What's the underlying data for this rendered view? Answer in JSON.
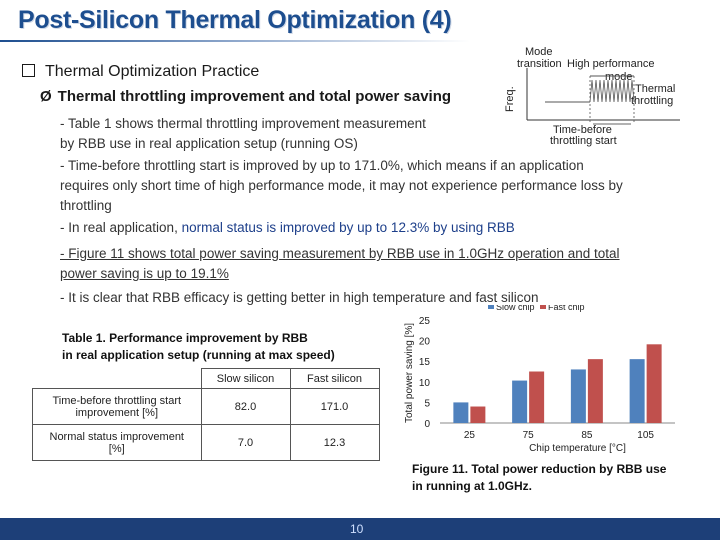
{
  "title": "Post-Silicon Thermal Optimization (4)",
  "bullet1": "Thermal Optimization Practice",
  "bullet2": "Thermal throttling improvement and total power saving",
  "arrow_glyph": "Ø",
  "para1_line1": "- Table 1 shows thermal throttling improvement measurement",
  "para1_line2": "by RBB use in real application setup (running OS)",
  "para2_line1": "- Time-before throttling start is improved by up to 171.0%, which means if an application",
  "para2_line2": "requires only short time of high performance mode, it may not experience performance loss by",
  "para2_line3": "throttling",
  "para3_prefix": "- In real application,",
  "para3_highlight": "normal status is improved by up to 12.3% by using RBB",
  "para4_line1": "- Figure 11 shows total power saving measurement by RBB use in 1.0GHz operation and total",
  "para4_line2": "power saving is up to 19.1%",
  "para5": "- It is clear that RBB efficacy is getting better in high temperature and fast silicon",
  "diagram": {
    "ylabel": "Freq.",
    "mode_transition": [
      "Mode",
      "transition"
    ],
    "high_perf": [
      "High performance",
      "mode"
    ],
    "thermal_throttling": [
      "Thermal",
      "throttling"
    ],
    "time_before": [
      "Time-before",
      "throttling start"
    ]
  },
  "table": {
    "caption_line1": "Table 1. Performance improvement by RBB",
    "caption_line2": "in real application setup (running at max speed)",
    "headers": [
      "",
      "Slow silicon",
      "Fast silicon"
    ],
    "rows": [
      {
        "label_line1": "Time-before throttling start",
        "label_line2": "improvement [%]",
        "slow": "82.0",
        "fast": "171.0"
      },
      {
        "label_line1": "Normal status improvement",
        "label_line2": "[%]",
        "slow": "7.0",
        "fast": "12.3"
      }
    ]
  },
  "chart_data": {
    "type": "bar",
    "categories": [
      "25",
      "75",
      "85",
      "105"
    ],
    "series": [
      {
        "name": "Slow chip",
        "values": [
          5.0,
          10.3,
          13.0,
          15.5
        ],
        "color": "#4f81bd"
      },
      {
        "name": "Fast chip",
        "values": [
          4.0,
          12.5,
          15.5,
          19.1
        ],
        "color": "#c0504d"
      }
    ],
    "ylabel": "Total power saving [%]",
    "xlabel": "Chip temperature [°C]",
    "ylim": [
      0,
      25
    ],
    "yticks": [
      "0",
      "5",
      "10",
      "15",
      "20",
      "25"
    ],
    "legend_position": "top-right",
    "grid": false
  },
  "figure_caption_line1": "Figure 11. Total power reduction by RBB use",
  "figure_caption_line2": "in running at 1.0GHz.",
  "page_number": "10"
}
